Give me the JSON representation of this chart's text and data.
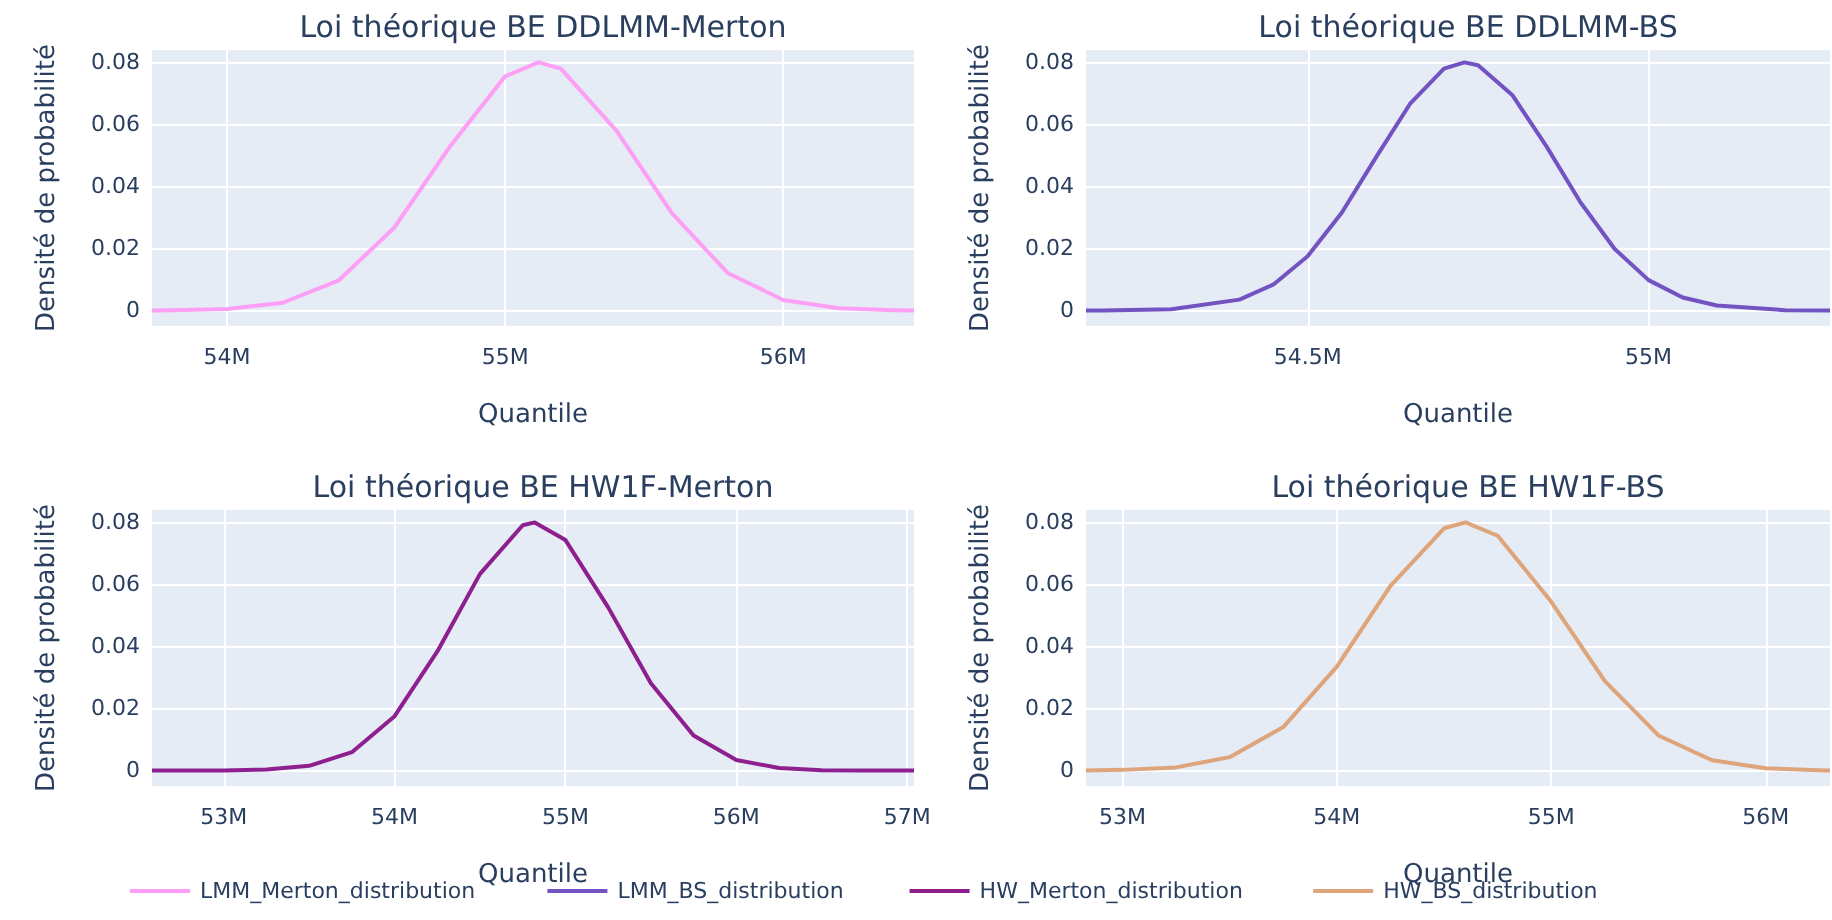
{
  "chart_data": [
    {
      "type": "line",
      "title": "Loi théorique BE DDLMM-Merton",
      "xlabel": "Quantile",
      "ylabel": "Densité de probabilité",
      "xlim": [
        53.73,
        56.47
      ],
      "xticks": [
        {
          "value": 54,
          "label": "54M"
        },
        {
          "value": 55,
          "label": "55M"
        },
        {
          "value": 56,
          "label": "56M"
        }
      ],
      "ylim": [
        -0.005,
        0.084
      ],
      "yticks": [
        0,
        0.02,
        0.04,
        0.06,
        0.08
      ],
      "grid": true,
      "legend": "bottom",
      "series": [
        {
          "name": "LMM_Merton_distribution",
          "color": "#fc9ff5",
          "x": [
            53.73,
            53.8,
            54.0,
            54.2,
            54.4,
            54.6,
            54.8,
            55.0,
            55.12,
            55.2,
            55.4,
            55.6,
            55.8,
            56.0,
            56.2,
            56.4,
            56.47
          ],
          "values": [
            0,
            0.0001,
            0.0005,
            0.0025,
            0.0096,
            0.0266,
            0.0527,
            0.0755,
            0.08,
            0.078,
            0.058,
            0.0313,
            0.0121,
            0.0034,
            0.0007,
            0.0001,
            0
          ]
        }
      ]
    },
    {
      "type": "line",
      "title": "Loi théorique BE DDLMM-BS",
      "xlabel": "Quantile",
      "ylabel": "Densité de probabilité",
      "xlim": [
        54.175,
        55.266
      ],
      "xticks": [
        {
          "value": 54.5,
          "label": "54.5M"
        },
        {
          "value": 55,
          "label": "55M"
        }
      ],
      "ylim": [
        -0.005,
        0.084
      ],
      "yticks": [
        0,
        0.02,
        0.04,
        0.06,
        0.08
      ],
      "grid": true,
      "legend": "bottom",
      "series": [
        {
          "name": "LMM_BS_distribution",
          "color": "#7352c2",
          "x": [
            54.175,
            54.2,
            54.3,
            54.4,
            54.45,
            54.5,
            54.55,
            54.6,
            54.65,
            54.7,
            54.73,
            54.75,
            54.8,
            54.85,
            54.9,
            54.95,
            55.0,
            55.05,
            55.1,
            55.2,
            55.266
          ],
          "values": [
            0,
            0,
            0.0004,
            0.0035,
            0.0084,
            0.0175,
            0.0315,
            0.0493,
            0.0666,
            0.078,
            0.08,
            0.0791,
            0.0695,
            0.053,
            0.0349,
            0.0199,
            0.0098,
            0.0042,
            0.0016,
            0.0001,
            0
          ]
        }
      ]
    },
    {
      "type": "line",
      "title": "Loi théorique BE HW1F-Merton",
      "xlabel": "Quantile",
      "ylabel": "Densité de probabilité",
      "xlim": [
        52.58,
        57.04
      ],
      "xticks": [
        {
          "value": 53,
          "label": "53M"
        },
        {
          "value": 54,
          "label": "54M"
        },
        {
          "value": 55,
          "label": "55M"
        },
        {
          "value": 56,
          "label": "56M"
        },
        {
          "value": 57,
          "label": "57M"
        }
      ],
      "ylim": [
        -0.005,
        0.084
      ],
      "yticks": [
        0,
        0.02,
        0.04,
        0.06,
        0.08
      ],
      "grid": true,
      "legend": "bottom",
      "series": [
        {
          "name": "HW_Merton_distribution",
          "color": "#8e1f8e",
          "x": [
            52.58,
            52.75,
            53.0,
            53.25,
            53.5,
            53.75,
            54.0,
            54.25,
            54.5,
            54.75,
            54.82,
            55.0,
            55.25,
            55.5,
            55.75,
            56.0,
            56.25,
            56.5,
            56.75,
            57.04
          ],
          "values": [
            0,
            0,
            0,
            0.0003,
            0.0015,
            0.0059,
            0.0175,
            0.0384,
            0.0634,
            0.0791,
            0.08,
            0.0743,
            0.0526,
            0.0281,
            0.0113,
            0.0034,
            0.0008,
            0.0001,
            0,
            0
          ]
        }
      ]
    },
    {
      "type": "line",
      "title": "Loi théorique BE HW1F-BS",
      "xlabel": "Quantile",
      "ylabel": "Densité de probabilité",
      "xlim": [
        52.83,
        56.3
      ],
      "xticks": [
        {
          "value": 53,
          "label": "53M"
        },
        {
          "value": 54,
          "label": "54M"
        },
        {
          "value": 55,
          "label": "55M"
        },
        {
          "value": 56,
          "label": "56M"
        }
      ],
      "ylim": [
        -0.005,
        0.084
      ],
      "yticks": [
        0,
        0.02,
        0.04,
        0.06,
        0.08
      ],
      "grid": true,
      "legend": "bottom",
      "series": [
        {
          "name": "HW_BS_distribution",
          "color": "#dea47a",
          "x": [
            52.83,
            53.0,
            53.25,
            53.5,
            53.75,
            54.0,
            54.25,
            54.5,
            54.6,
            54.75,
            55.0,
            55.25,
            55.5,
            55.75,
            56.0,
            56.25,
            56.3
          ],
          "values": [
            0,
            0.0002,
            0.001,
            0.0043,
            0.014,
            0.0335,
            0.0595,
            0.0781,
            0.08,
            0.0757,
            0.0544,
            0.0288,
            0.0113,
            0.0033,
            0.0007,
            0.0001,
            0
          ]
        }
      ]
    }
  ]
}
